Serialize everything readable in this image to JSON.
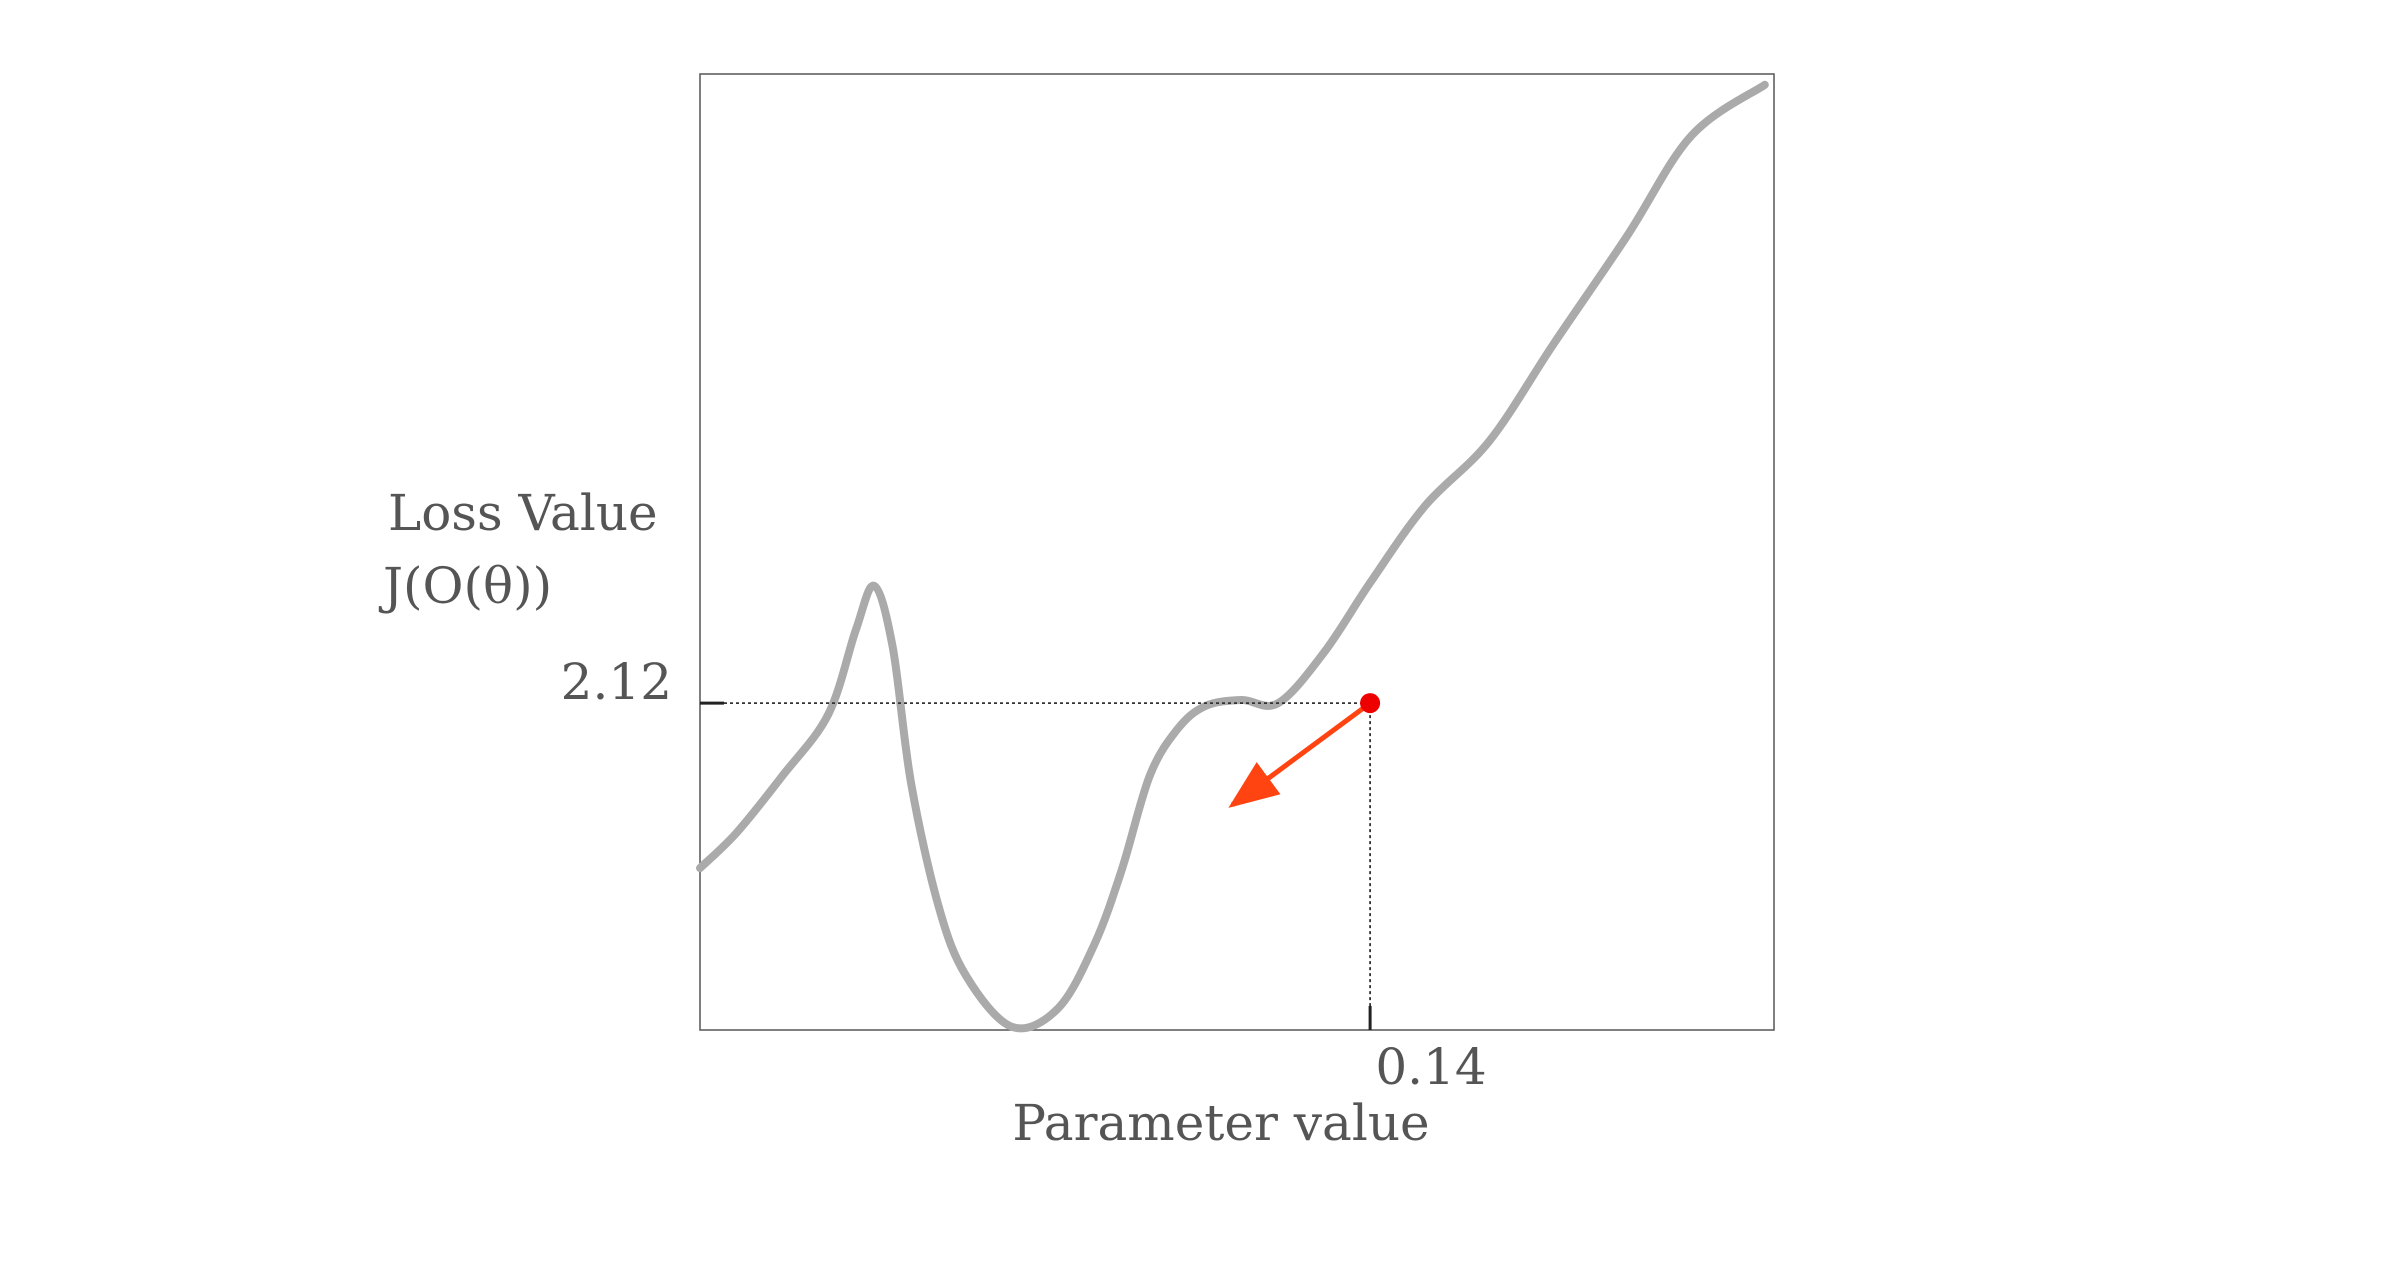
{
  "chart_data": {
    "type": "line",
    "title": "",
    "ylabel_lines": [
      "Loss Value",
      "J(O(θ))"
    ],
    "xlabel": "Parameter value",
    "grid": false,
    "legend": "none",
    "series": [
      {
        "x": [
          -0.59,
          -0.55,
          -0.5,
          -0.45,
          -0.42,
          -0.4,
          -0.38,
          -0.36,
          -0.33,
          -0.3,
          -0.25,
          -0.2,
          -0.16,
          -0.13,
          -0.1,
          -0.07,
          -0.04,
          0.0,
          0.04,
          0.09,
          0.14,
          0.2,
          0.27,
          0.34,
          0.42,
          0.49,
          0.57
        ],
        "y": [
          1.05,
          1.28,
          1.65,
          2.05,
          2.6,
          2.88,
          2.48,
          1.6,
          0.8,
          0.35,
          0.02,
          0.14,
          0.56,
          1.05,
          1.65,
          1.95,
          2.1,
          2.14,
          2.12,
          2.45,
          2.9,
          3.4,
          3.82,
          4.45,
          5.15,
          5.8,
          6.13
        ]
      }
    ],
    "point": {
      "x": 0.14,
      "y": 2.12
    },
    "point_label_x": "0.14",
    "point_label_y": "2.12",
    "gradient_arrow": {
      "to_x": -0.01,
      "to_y": 1.46
    },
    "colors": {
      "curve": "#aaaaaa",
      "point": "#ee0000",
      "arrow": "#ff4411",
      "text": "#555555",
      "frame": "#555555"
    }
  }
}
